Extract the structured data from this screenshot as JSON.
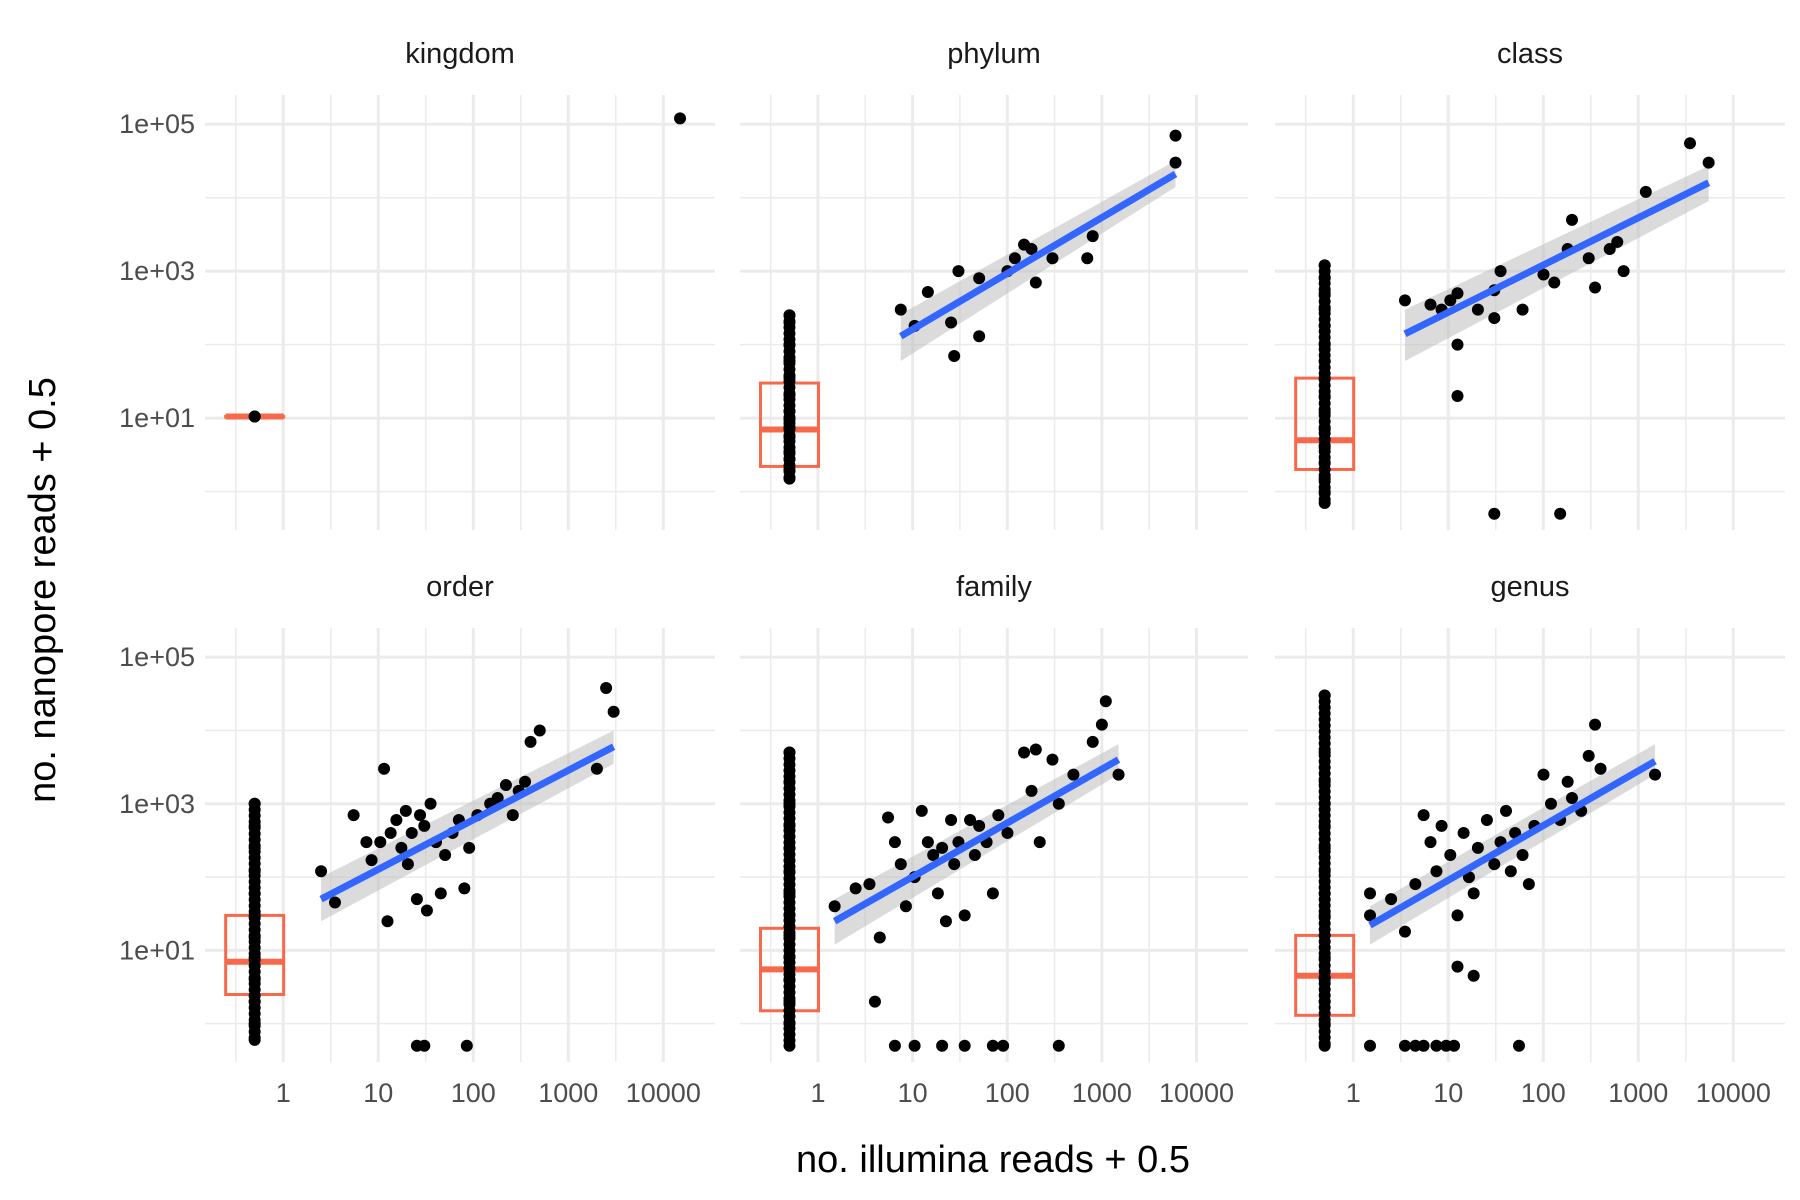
{
  "chart_data": {
    "type": "scatter",
    "facets": [
      "kingdom",
      "phylum",
      "class",
      "order",
      "family",
      "genus"
    ],
    "xlabel": "no. illumina reads + 0.5",
    "ylabel": "no. nanopore reads + 0.5",
    "xscale": "log10",
    "yscale": "log10",
    "xlim": [
      0.15,
      35000
    ],
    "ylim": [
      0.3,
      250000
    ],
    "x_ticks": [
      1,
      10,
      100,
      1000,
      10000
    ],
    "x_tick_labels": [
      "1",
      "10",
      "100",
      "1000",
      "10000"
    ],
    "y_ticks": [
      10,
      1000,
      100000
    ],
    "y_tick_labels": [
      "1e+01",
      "1e+03",
      "1e+05"
    ],
    "grid": true,
    "colors": {
      "points": "#000000",
      "boxplot": "#F8694B",
      "fit_line": "#3366FF",
      "ribbon": "#BDBDBD",
      "grid": "#EBEBEB"
    },
    "panels": [
      {
        "name": "kingdom",
        "points": [
          [
            0.5,
            10.5
          ],
          [
            15000,
            120000
          ]
        ],
        "boxplot": {
          "x": 0.5,
          "lower": 10.5,
          "q1": 10.5,
          "median": 10.5,
          "q3": 10.5,
          "upper": 10.5
        },
        "fit": null,
        "zero_y_points": [
          10.5
        ]
      },
      {
        "name": "phylum",
        "points": [
          [
            7.5,
            300
          ],
          [
            10.5,
            180
          ],
          [
            14.5,
            520
          ],
          [
            25.5,
            200
          ],
          [
            30.5,
            1000
          ],
          [
            27.5,
            70
          ],
          [
            50.5,
            800
          ],
          [
            50.5,
            130
          ],
          [
            100.5,
            1000
          ],
          [
            120.5,
            1500
          ],
          [
            150.5,
            2300
          ],
          [
            180.5,
            2000
          ],
          [
            200.5,
            700
          ],
          [
            300.5,
            1500
          ],
          [
            700.5,
            1500
          ],
          [
            800.5,
            3000
          ],
          [
            6000.5,
            70000
          ],
          [
            6000.5,
            30000
          ]
        ],
        "boxplot": {
          "x": 0.5,
          "lower": 1.5,
          "q1": 2.2,
          "median": 7.0,
          "q3": 30,
          "upper": 200
        },
        "fit": {
          "x0": 7.5,
          "y0": 130,
          "x1": 6000,
          "y1": 21000,
          "ribbon_at_start": [
            60,
            260
          ],
          "ribbon_at_end": [
            14000,
            32000
          ]
        },
        "zero_y_points": [
          1.5,
          2,
          2.8,
          3.5,
          5.5,
          7.5,
          9.5,
          12.5,
          20.5,
          35.5,
          60.5,
          100.5,
          200.5,
          250.5
        ]
      },
      {
        "name": "class",
        "points": [
          [
            3.5,
            400
          ],
          [
            6.5,
            350
          ],
          [
            8.5,
            300
          ],
          [
            10.5,
            400
          ],
          [
            12.5,
            100
          ],
          [
            12.5,
            20
          ],
          [
            12.5,
            500
          ],
          [
            20.5,
            300
          ],
          [
            30.5,
            550
          ],
          [
            30.5,
            230
          ],
          [
            35.5,
            1000
          ],
          [
            60.5,
            300
          ],
          [
            100.5,
            900
          ],
          [
            130.5,
            700
          ],
          [
            180.5,
            2000
          ],
          [
            200.5,
            5000
          ],
          [
            300.5,
            1500
          ],
          [
            350.5,
            600
          ],
          [
            500.5,
            2000
          ],
          [
            600.5,
            2500
          ],
          [
            700.5,
            1000
          ],
          [
            1200.5,
            12000
          ],
          [
            3500.5,
            55000
          ],
          [
            5500.5,
            30000
          ],
          [
            30.5,
            0.5
          ],
          [
            150.5,
            0.5
          ]
        ],
        "boxplot": {
          "x": 0.5,
          "lower": 0.7,
          "q1": 2.0,
          "median": 5.0,
          "q3": 35,
          "upper": 1200
        },
        "fit": {
          "x0": 3.5,
          "y0": 140,
          "x1": 5500,
          "y1": 16000,
          "ribbon_at_start": [
            60,
            300
          ],
          "ribbon_at_end": [
            9000,
            27000
          ]
        },
        "zero_y_points": [
          0.7,
          1.0,
          1.5,
          2.5,
          4.0,
          7.0,
          12.0,
          20.0,
          35.0,
          60.0,
          100.0,
          180.0,
          300.0,
          500.0,
          800.0,
          1200.0
        ]
      },
      {
        "name": "order",
        "points": [
          [
            2.5,
            120
          ],
          [
            3.5,
            45
          ],
          [
            5.5,
            700
          ],
          [
            7.5,
            300
          ],
          [
            8.5,
            170
          ],
          [
            10.5,
            300
          ],
          [
            11.5,
            3000
          ],
          [
            12.5,
            25
          ],
          [
            13.5,
            400
          ],
          [
            15.5,
            600
          ],
          [
            17.5,
            250
          ],
          [
            19.5,
            800
          ],
          [
            20.5,
            150
          ],
          [
            22.5,
            400
          ],
          [
            25.5,
            50
          ],
          [
            27.5,
            700
          ],
          [
            30.5,
            500
          ],
          [
            32.5,
            35
          ],
          [
            35.5,
            1000
          ],
          [
            40.5,
            300
          ],
          [
            45.5,
            60
          ],
          [
            50.5,
            200
          ],
          [
            60.5,
            400
          ],
          [
            70.5,
            600
          ],
          [
            80.5,
            70
          ],
          [
            90.5,
            250
          ],
          [
            110.5,
            700
          ],
          [
            150.5,
            1000
          ],
          [
            180.5,
            1200
          ],
          [
            220.5,
            1800
          ],
          [
            260.5,
            700
          ],
          [
            300.5,
            1500
          ],
          [
            350.5,
            2000
          ],
          [
            400.5,
            7000
          ],
          [
            500.5,
            10000
          ],
          [
            2000.5,
            3000
          ],
          [
            2500.5,
            38000
          ],
          [
            3000.5,
            18000
          ],
          [
            25.5,
            0.5
          ],
          [
            30.5,
            0.5
          ],
          [
            85.5,
            0.5
          ]
        ],
        "boxplot": {
          "x": 0.5,
          "lower": 0.6,
          "q1": 2.5,
          "median": 7.0,
          "q3": 30,
          "upper": 1000
        },
        "fit": {
          "x0": 2.5,
          "y0": 50,
          "x1": 3000,
          "y1": 6000,
          "ribbon_at_start": [
            25,
            100
          ],
          "ribbon_at_end": [
            3500,
            10000
          ]
        },
        "zero_y_points": [
          0.6,
          1.0,
          2.0,
          4.0,
          8.0,
          15.0,
          30.0,
          60.0,
          120.0,
          250.0,
          500.0,
          1000.0
        ]
      },
      {
        "name": "family",
        "points": [
          [
            1.5,
            40
          ],
          [
            2.5,
            70
          ],
          [
            3.5,
            80
          ],
          [
            4.5,
            15
          ],
          [
            5.5,
            650
          ],
          [
            6.5,
            300
          ],
          [
            7.5,
            150
          ],
          [
            8.5,
            40
          ],
          [
            10.5,
            100
          ],
          [
            12.5,
            800
          ],
          [
            14.5,
            300
          ],
          [
            16.5,
            200
          ],
          [
            18.5,
            60
          ],
          [
            20.5,
            250
          ],
          [
            22.5,
            25
          ],
          [
            25.5,
            600
          ],
          [
            27.5,
            150
          ],
          [
            30.5,
            300
          ],
          [
            35.5,
            30
          ],
          [
            40.5,
            600
          ],
          [
            45.5,
            200
          ],
          [
            50.5,
            500
          ],
          [
            60.5,
            300
          ],
          [
            70.5,
            60
          ],
          [
            80.5,
            700
          ],
          [
            100.5,
            400
          ],
          [
            150.5,
            5000
          ],
          [
            180.5,
            1500
          ],
          [
            200.5,
            5500
          ],
          [
            220.5,
            300
          ],
          [
            300.5,
            4000
          ],
          [
            350.5,
            1000
          ],
          [
            500.5,
            2500
          ],
          [
            800.5,
            7000
          ],
          [
            1000.5,
            12000
          ],
          [
            1100.5,
            25000
          ],
          [
            1500.5,
            2500
          ],
          [
            4.0,
            2.0
          ],
          [
            6.5,
            0.5
          ],
          [
            10.5,
            0.5
          ],
          [
            20.5,
            0.5
          ],
          [
            35.5,
            0.5
          ],
          [
            70.5,
            0.5
          ],
          [
            90.5,
            0.5
          ],
          [
            350.5,
            0.5
          ]
        ],
        "boxplot": {
          "x": 0.5,
          "lower": 0.5,
          "q1": 1.5,
          "median": 5.5,
          "q3": 20,
          "upper": 5000
        },
        "fit": {
          "x0": 1.5,
          "y0": 25,
          "x1": 1500,
          "y1": 4000,
          "ribbon_at_start": [
            12,
            50
          ],
          "ribbon_at_end": [
            2500,
            6500
          ]
        },
        "zero_y_points": [
          0.5,
          1.0,
          2.0,
          4.0,
          8.0,
          16.0,
          30.0,
          60.0,
          120.0,
          250.0,
          500.0,
          1000.0,
          2000.0,
          5000.0
        ]
      },
      {
        "name": "genus",
        "points": [
          [
            1.5,
            60
          ],
          [
            1.5,
            30
          ],
          [
            2.5,
            50
          ],
          [
            3.5,
            18
          ],
          [
            4.5,
            80
          ],
          [
            5.5,
            700
          ],
          [
            6.5,
            300
          ],
          [
            7.5,
            120
          ],
          [
            8.5,
            500
          ],
          [
            10.5,
            200
          ],
          [
            12.5,
            30
          ],
          [
            14.5,
            400
          ],
          [
            16.5,
            100
          ],
          [
            18.5,
            60
          ],
          [
            20.5,
            250
          ],
          [
            25.5,
            600
          ],
          [
            30.5,
            150
          ],
          [
            35.5,
            300
          ],
          [
            40.5,
            800
          ],
          [
            45.5,
            120
          ],
          [
            50.5,
            400
          ],
          [
            60.5,
            200
          ],
          [
            70.5,
            80
          ],
          [
            80.5,
            500
          ],
          [
            100.5,
            2500
          ],
          [
            120.5,
            1000
          ],
          [
            150.5,
            600
          ],
          [
            180.5,
            2000
          ],
          [
            200.5,
            1200
          ],
          [
            250.5,
            800
          ],
          [
            300.5,
            4500
          ],
          [
            350.5,
            12000
          ],
          [
            400.5,
            3000
          ],
          [
            1500.5,
            2500
          ],
          [
            12.5,
            6.0
          ],
          [
            18.5,
            4.5
          ],
          [
            1.5,
            0.5
          ],
          [
            3.5,
            0.5
          ],
          [
            4.5,
            0.5
          ],
          [
            5.5,
            0.5
          ],
          [
            7.5,
            0.5
          ],
          [
            9.5,
            0.5
          ],
          [
            11.5,
            0.5
          ],
          [
            55.5,
            0.5
          ]
        ],
        "boxplot": {
          "x": 0.5,
          "lower": 0.5,
          "q1": 1.3,
          "median": 4.5,
          "q3": 16,
          "upper": 30000
        },
        "fit": {
          "x0": 1.5,
          "y0": 22,
          "x1": 1500,
          "y1": 3800,
          "ribbon_at_start": [
            12,
            40
          ],
          "ribbon_at_end": [
            2500,
            6500
          ]
        },
        "zero_y_points": [
          0.5,
          1.0,
          2.0,
          4.0,
          8.0,
          16.0,
          30.0,
          60.0,
          120.0,
          250.0,
          500.0,
          1000.0,
          2000.0,
          5000.0,
          30000.0
        ]
      }
    ]
  }
}
